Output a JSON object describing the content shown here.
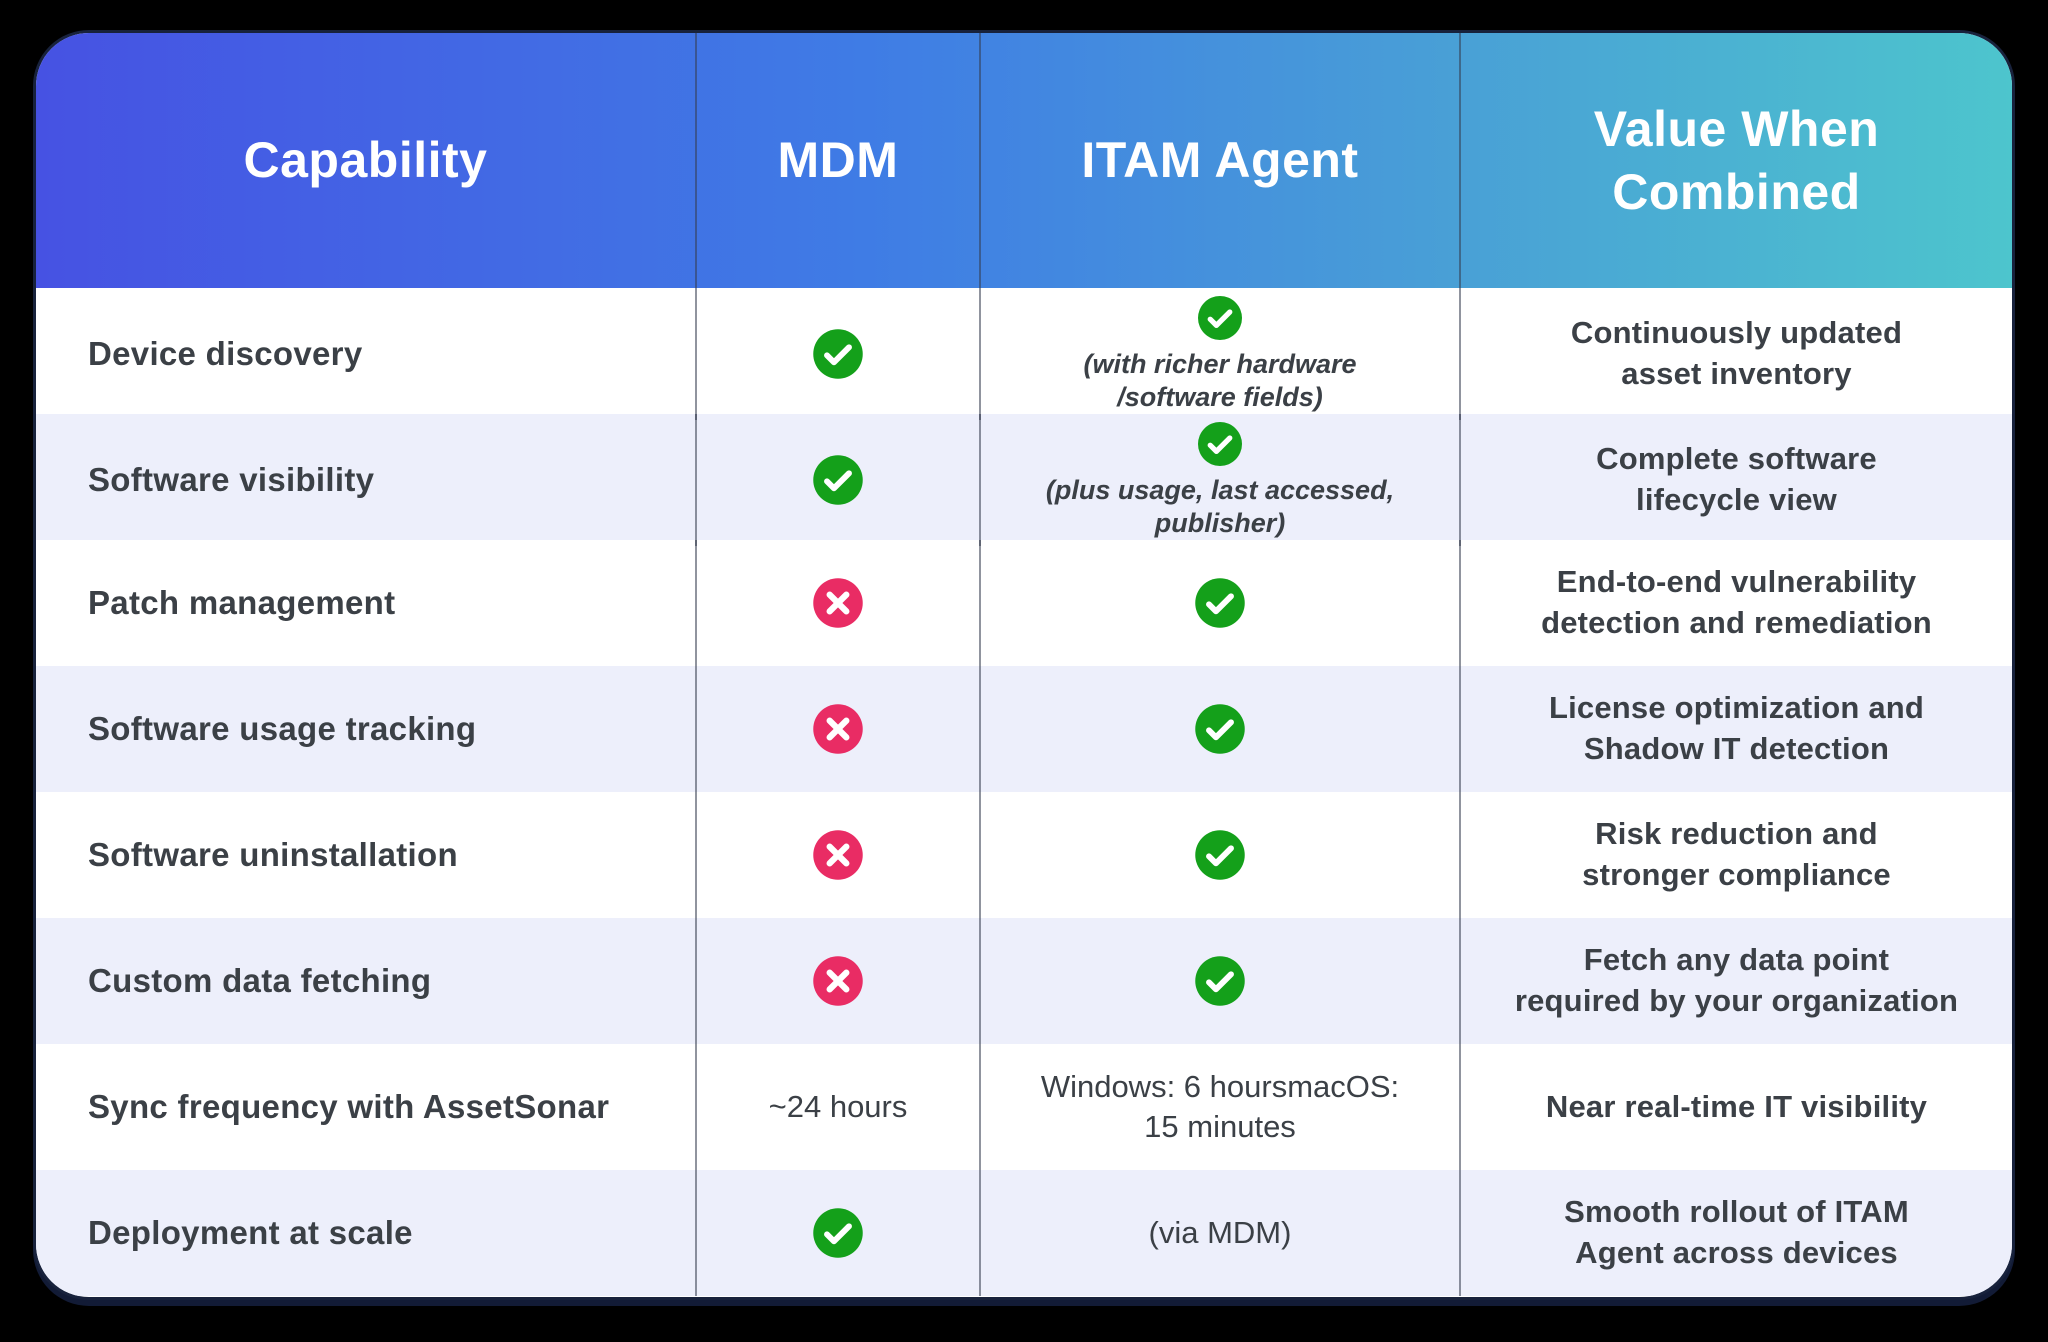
{
  "chart_data": {
    "type": "table",
    "title": "MDM vs ITAM Agent capability comparison",
    "columns": [
      "Capability",
      "MDM",
      "ITAM Agent",
      "Value When\nCombined"
    ],
    "rows": [
      {
        "capability": "Device discovery",
        "mdm": {
          "type": "check"
        },
        "itam": {
          "type": "check",
          "note": "(with richer hardware\n/software fields)"
        },
        "value": "Continuously updated\nasset inventory"
      },
      {
        "capability": "Software visibility",
        "mdm": {
          "type": "check"
        },
        "itam": {
          "type": "check",
          "note": "(plus usage, last accessed,\npublisher)"
        },
        "value": "Complete software\nlifecycle view"
      },
      {
        "capability": "Patch management",
        "mdm": {
          "type": "cross"
        },
        "itam": {
          "type": "check"
        },
        "value": "End-to-end vulnerability\ndetection and remediation"
      },
      {
        "capability": "Software usage tracking",
        "mdm": {
          "type": "cross"
        },
        "itam": {
          "type": "check"
        },
        "value": "License optimization and\nShadow IT detection"
      },
      {
        "capability": "Software uninstallation",
        "mdm": {
          "type": "cross"
        },
        "itam": {
          "type": "check"
        },
        "value": "Risk reduction and\nstronger compliance"
      },
      {
        "capability": "Custom data fetching",
        "mdm": {
          "type": "cross"
        },
        "itam": {
          "type": "check"
        },
        "value": "Fetch any data point\nrequired by your organization"
      },
      {
        "capability": "Sync frequency with AssetSonar",
        "mdm": {
          "type": "text",
          "text": "~24 hours"
        },
        "itam": {
          "type": "text",
          "text": "Windows: 6 hoursmacOS:\n15 minutes"
        },
        "value": "Near real-time IT visibility"
      },
      {
        "capability": "Deployment at scale",
        "mdm": {
          "type": "check"
        },
        "itam": {
          "type": "text",
          "text": "(via MDM)"
        },
        "value": "Smooth rollout of ITAM\nAgent across devices"
      }
    ]
  },
  "icons": {
    "check": "check-icon",
    "cross": "cross-icon"
  },
  "colors": {
    "background": "#000000",
    "card_border": "#18223c",
    "header_gradient_start": "#4652e3",
    "header_gradient_mid": "#3f7ce5",
    "header_gradient_end": "#4dc5cd",
    "header_text": "#ffffff",
    "row_default": "#ffffff",
    "row_alt": "#edeffb",
    "check_green": "#14a01a",
    "cross_pink": "#e92c64",
    "text_dark": "#3b4046"
  }
}
